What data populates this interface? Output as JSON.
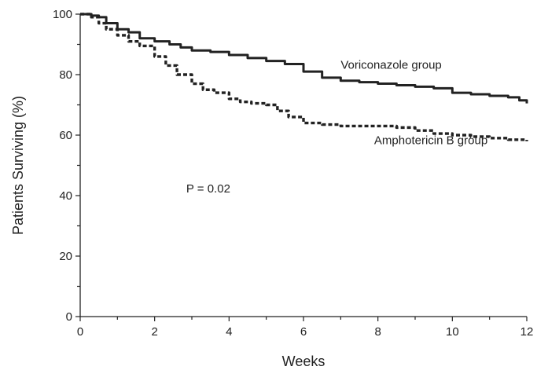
{
  "chart_data": {
    "type": "line",
    "title": "",
    "xlabel": "Weeks",
    "ylabel": "Patients Surviving (%)",
    "xlim": [
      0,
      12
    ],
    "ylim": [
      0,
      100
    ],
    "xticks": [
      0,
      2,
      4,
      6,
      8,
      10,
      12
    ],
    "yticks": [
      0,
      20,
      40,
      60,
      80,
      100
    ],
    "grid": false,
    "series": [
      {
        "name": "Voriconazole group",
        "style": "solid",
        "color": "#222222",
        "x": [
          0,
          0.3,
          0.5,
          0.7,
          1.0,
          1.3,
          1.6,
          2.0,
          2.4,
          2.7,
          3.0,
          3.5,
          4.0,
          4.5,
          5.0,
          5.5,
          6.0,
          6.5,
          7.0,
          7.5,
          8.0,
          8.5,
          9.0,
          9.5,
          10.0,
          10.5,
          11.0,
          11.5,
          11.8,
          12.0
        ],
        "y": [
          100,
          99.5,
          99,
          97,
          95,
          94,
          92,
          91,
          90,
          89,
          88,
          87.5,
          86.5,
          85.5,
          84.5,
          83.5,
          81,
          79,
          78,
          77.5,
          77,
          76.5,
          76,
          75.5,
          74,
          73.5,
          73,
          72.5,
          71.5,
          70.5
        ]
      },
      {
        "name": "Amphotericin B group",
        "style": "dashed",
        "color": "#222222",
        "x": [
          0,
          0.3,
          0.5,
          0.7,
          1.0,
          1.3,
          1.6,
          2.0,
          2.3,
          2.6,
          3.0,
          3.3,
          3.6,
          4.0,
          4.3,
          4.6,
          5.0,
          5.3,
          5.6,
          6.0,
          6.5,
          7.0,
          7.5,
          8.0,
          8.5,
          9.0,
          9.5,
          10.0,
          10.5,
          11.0,
          11.5,
          12.0
        ],
        "y": [
          100,
          99,
          97,
          95,
          93,
          91,
          89.5,
          86,
          83,
          80,
          77,
          75,
          74,
          72,
          71,
          70.5,
          70,
          68,
          66,
          64,
          63.5,
          63,
          63,
          63,
          62.5,
          61.5,
          60.5,
          60,
          59.5,
          59,
          58.5,
          58
        ]
      }
    ],
    "annotations": [
      {
        "text": "Voriconazole group",
        "x": 7.0,
        "y": 82
      },
      {
        "text": "Amphotericin B group",
        "x": 7.9,
        "y": 57
      },
      {
        "text": "P = 0.02",
        "x": 2.85,
        "y": 41
      }
    ]
  }
}
